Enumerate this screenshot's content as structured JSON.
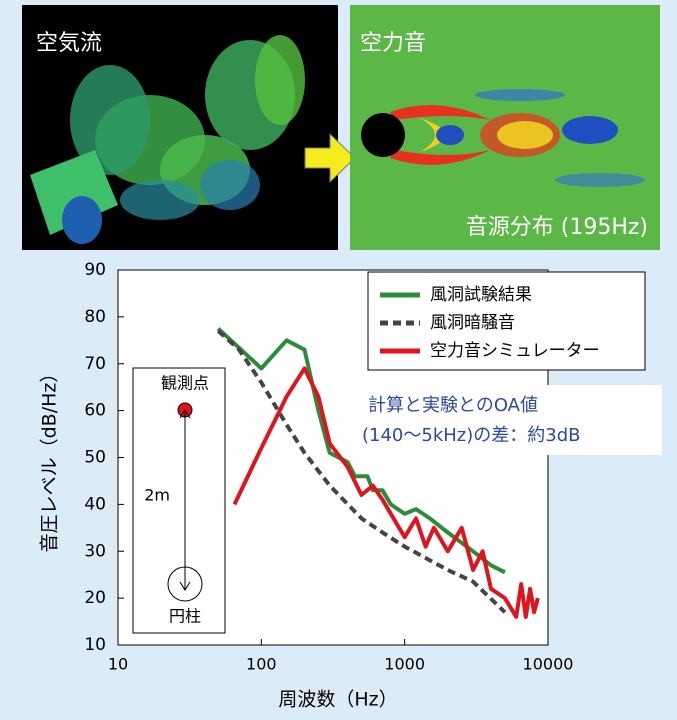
{
  "panels": {
    "left_label": "空気流",
    "right_label": "空力音",
    "right_caption": "音源分布 (195Hz)"
  },
  "chart_data": {
    "type": "line",
    "x_label": "周波数（Hz）",
    "y_label": "音圧レベル（dB/Hz）",
    "xscale": "log",
    "xlim": [
      10,
      10000
    ],
    "xticks": [
      10,
      100,
      1000,
      10000
    ],
    "ylim": [
      10,
      90
    ],
    "yticks": [
      10,
      20,
      30,
      40,
      50,
      60,
      70,
      80,
      90
    ],
    "annotation": [
      "計算と実験とのOA値",
      "(140〜5kHz)の差：約3dB"
    ],
    "inset": {
      "observer": "観測点",
      "distance": "2m",
      "cylinder": "円柱"
    },
    "series": [
      {
        "name": "風洞試験結果",
        "color": "#2e8b3a",
        "dashed": false,
        "x": [
          50,
          100,
          150,
          200,
          250,
          300,
          400,
          450,
          550,
          600,
          700,
          800,
          1000,
          1200,
          1500,
          2000,
          3000,
          4000,
          5000
        ],
        "values": [
          77.5,
          69,
          75,
          73,
          60,
          51,
          49,
          46,
          46,
          43,
          43,
          40,
          38,
          39,
          37,
          34,
          30,
          27,
          25.5
        ]
      },
      {
        "name": "風洞暗騒音",
        "color": "#444444",
        "dashed": true,
        "x": [
          50,
          70,
          100,
          150,
          200,
          300,
          500,
          700,
          1000,
          2000,
          3000,
          5000
        ],
        "values": [
          77,
          73,
          66,
          57,
          51,
          44,
          37,
          34,
          31,
          26,
          23.5,
          17
        ]
      },
      {
        "name": "空力音シミュレーター",
        "color": "#e0141e",
        "dashed": false,
        "x": [
          65,
          100,
          150,
          200,
          250,
          300,
          400,
          500,
          600,
          700,
          800,
          1000,
          1200,
          1400,
          1600,
          2000,
          2500,
          3000,
          3500,
          4000,
          5000,
          6000,
          6500,
          7000,
          7500,
          8000,
          8500
        ],
        "values": [
          40,
          52,
          63,
          69,
          63,
          53,
          48,
          42,
          44,
          41,
          38,
          33,
          37,
          31,
          35,
          30,
          35,
          26,
          30,
          22,
          20,
          16,
          23,
          16,
          22,
          17,
          20
        ]
      }
    ]
  }
}
